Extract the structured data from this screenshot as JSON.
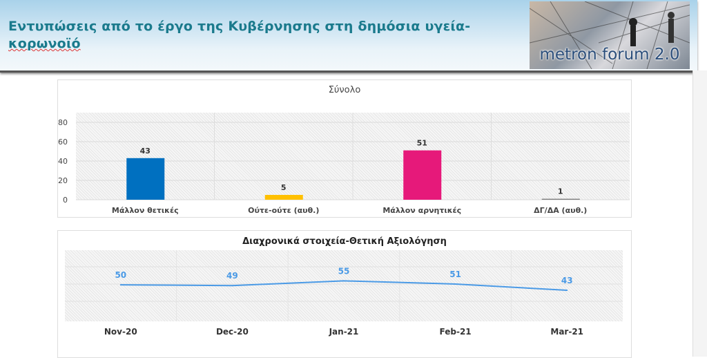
{
  "header": {
    "title_line1": "Εντυπώσεις από το έργο της Κυβέρνησης στη δημόσια υγεία-",
    "title_line2": "κορωνοϊό",
    "logo_text": "metron forum 2.0"
  },
  "chart_data": [
    {
      "type": "bar",
      "title": "Σύνολο",
      "categories": [
        "Μάλλον θετικές",
        "Ούτε-ούτε (αυθ.)",
        "Μάλλον αρνητικές",
        "ΔΓ/ΔΑ (αυθ.)"
      ],
      "values": [
        43,
        5,
        51,
        1
      ],
      "colors": [
        "#0070c0",
        "#ffc000",
        "#e6197a",
        "#7f7f7f"
      ],
      "yticks": [
        0,
        20,
        40,
        60,
        80
      ],
      "ylim": [
        0,
        90
      ],
      "grid": true
    },
    {
      "type": "line",
      "title": "Διαχρονικά στοιχεία-Θετική Αξιολόγηση",
      "categories": [
        "Nov-20",
        "Dec-20",
        "Jan-21",
        "Feb-21",
        "Mar-21"
      ],
      "values": [
        50,
        49,
        55,
        51,
        43
      ],
      "color": "#4a9ae6",
      "ylim": [
        0,
        94
      ],
      "grid": true
    }
  ]
}
